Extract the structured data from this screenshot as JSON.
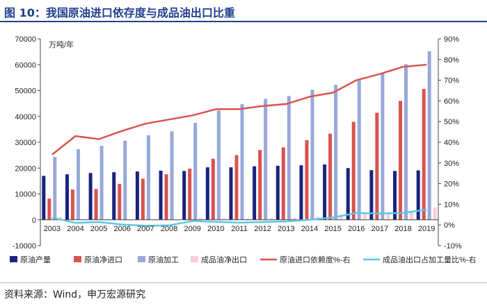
{
  "header": {
    "title": "图 10：我国原油进口依存度与成品油出口比重"
  },
  "footer": {
    "source": "资料来源：Wind，申万宏源研究"
  },
  "chart_data": {
    "type": "bar",
    "unit_label": "万吨/年",
    "categories": [
      "2003",
      "2004",
      "2005",
      "2006",
      "2007",
      "2008",
      "2009",
      "2010",
      "2011",
      "2012",
      "2013",
      "2014",
      "2015",
      "2016",
      "2017",
      "2018",
      "2019"
    ],
    "y_left": {
      "min": -10000,
      "max": 70000,
      "ticks": [
        -10000,
        0,
        10000,
        20000,
        30000,
        40000,
        50000,
        60000,
        70000
      ]
    },
    "y_right": {
      "min": -10,
      "max": 90,
      "ticks": [
        -10,
        0,
        10,
        20,
        30,
        40,
        50,
        60,
        70,
        80,
        90
      ],
      "suffix": "%"
    },
    "series": [
      {
        "name": "原油产量",
        "type": "bar",
        "axis": "left",
        "color": "#1a237e",
        "values": [
          17000,
          17600,
          18100,
          18400,
          18700,
          19000,
          18900,
          20300,
          20300,
          20700,
          20900,
          21100,
          21400,
          20000,
          19200,
          18900,
          19100
        ]
      },
      {
        "name": "原油净进口",
        "type": "bar",
        "axis": "left",
        "color": "#d9534f",
        "values": [
          8200,
          11700,
          11900,
          13900,
          15900,
          17600,
          19800,
          23600,
          25000,
          27000,
          28000,
          30800,
          33300,
          37900,
          41400,
          46000,
          50600
        ]
      },
      {
        "name": "原油加工",
        "type": "bar",
        "axis": "left",
        "color": "#98a8d8",
        "values": [
          24300,
          27300,
          28600,
          30600,
          32700,
          34200,
          37500,
          42300,
          44800,
          46800,
          47900,
          50300,
          52200,
          54100,
          56800,
          60200,
          65200
        ]
      },
      {
        "name": "成品油净出口",
        "type": "bar",
        "axis": "left",
        "color": "#f5cfd6",
        "values": [
          1000,
          200,
          400,
          -100,
          -200,
          -100,
          700,
          600,
          500,
          600,
          800,
          1200,
          1900,
          2700,
          2900,
          3300,
          4800
        ]
      },
      {
        "name": "原油进口依赖度%-右",
        "type": "line",
        "axis": "right",
        "color": "#d9534f",
        "values": [
          34,
          43,
          41.5,
          45.5,
          49,
          51,
          53,
          56,
          56,
          57.5,
          58.5,
          62,
          64,
          70,
          73,
          76.5,
          77.5
        ]
      },
      {
        "name": "成品油出口占加工量比%-右",
        "type": "line",
        "axis": "right",
        "color": "#5bc8e6",
        "values": [
          3.5,
          1,
          1.4,
          0.2,
          -0.4,
          -0.2,
          1.9,
          1.5,
          1.1,
          1.4,
          1.7,
          2.5,
          3.6,
          5.8,
          5.5,
          5.8,
          7.4
        ]
      }
    ],
    "grid": false,
    "legend_position": "bottom"
  }
}
